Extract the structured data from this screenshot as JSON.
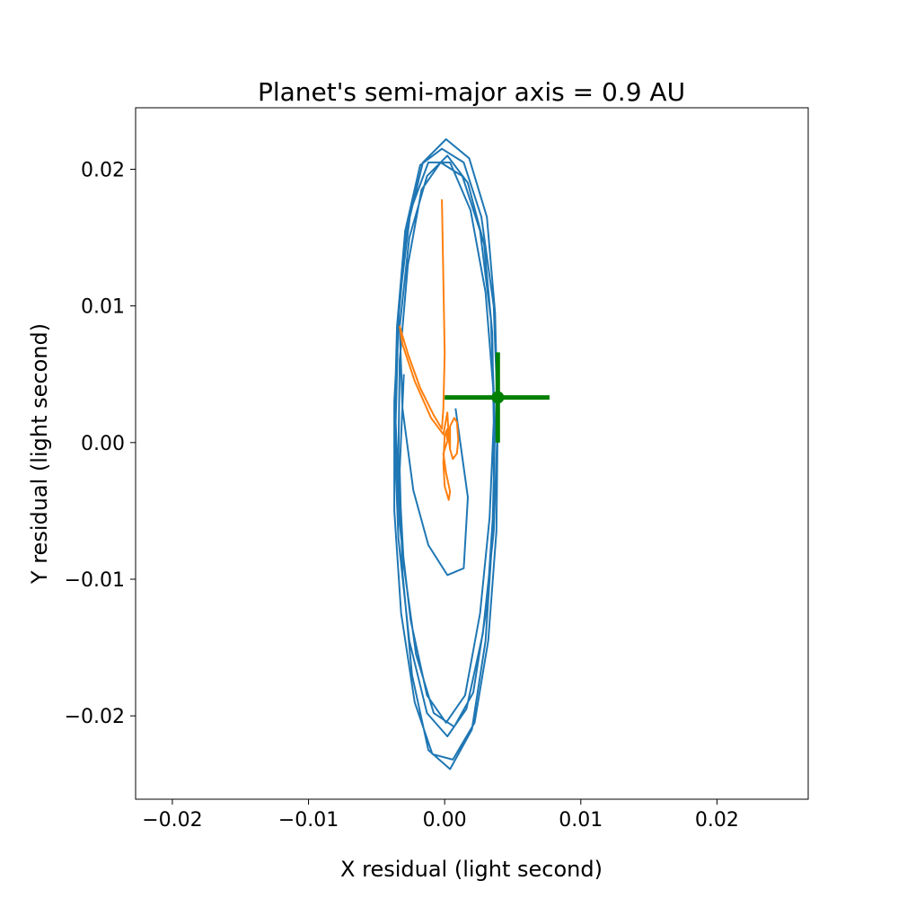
{
  "chart_data": {
    "type": "line",
    "title": "Planet's semi-major axis = 0.9 AU",
    "xlabel": "X residual (light second)",
    "ylabel": "Y residual (light second)",
    "xlim": [
      -0.0227,
      0.0267
    ],
    "ylim": [
      -0.0261,
      0.0245
    ],
    "xticks": [
      -0.02,
      -0.01,
      0.0,
      0.01,
      0.02
    ],
    "xtick_labels": [
      "−0.02",
      "−0.01",
      "0.00",
      "0.01",
      "0.02"
    ],
    "yticks": [
      -0.02,
      -0.01,
      0.0,
      0.01,
      0.02
    ],
    "ytick_labels": [
      "−0.02",
      "−0.01",
      "0.00",
      "0.01",
      "0.02"
    ],
    "grid": false,
    "legend": "none",
    "series": [
      {
        "color": "#1f77b4",
        "points": [
          [
            0.0008,
            0.0025
          ],
          [
            0.0017,
            -0.004
          ],
          [
            0.0014,
            -0.0092
          ],
          [
            0.0002,
            -0.0097
          ],
          [
            -0.0012,
            -0.0075
          ],
          [
            -0.0023,
            -0.0035
          ],
          [
            -0.0031,
            0.0025
          ],
          [
            -0.0033,
            0.0085
          ],
          [
            -0.0026,
            0.015
          ],
          [
            -0.0013,
            0.0195
          ],
          [
            0.0002,
            0.021
          ],
          [
            0.0017,
            0.019
          ],
          [
            0.0029,
            0.0145
          ],
          [
            0.0035,
            0.008
          ],
          [
            0.0036,
            0.0015
          ],
          [
            0.0033,
            -0.0055
          ],
          [
            0.0026,
            -0.0125
          ],
          [
            0.0015,
            -0.0185
          ],
          [
            0.0001,
            -0.0205
          ],
          [
            -0.0013,
            -0.0185
          ],
          [
            -0.0025,
            -0.013
          ],
          [
            -0.0033,
            -0.006
          ],
          [
            -0.0036,
            0.0015
          ],
          [
            -0.0034,
            0.009
          ],
          [
            -0.0028,
            0.0155
          ],
          [
            -0.0016,
            0.0205
          ],
          [
            0.0001,
            0.0222
          ],
          [
            0.0018,
            0.0208
          ],
          [
            0.0031,
            0.0165
          ],
          [
            0.0037,
            0.0095
          ],
          [
            0.0039,
            0.0015
          ],
          [
            0.0036,
            -0.0065
          ],
          [
            0.0028,
            -0.014
          ],
          [
            0.0016,
            -0.0195
          ],
          [
            0.0002,
            -0.0215
          ],
          [
            -0.0013,
            -0.0198
          ],
          [
            -0.0026,
            -0.0145
          ],
          [
            -0.0034,
            -0.007
          ],
          [
            -0.0037,
            0.001
          ],
          [
            -0.0035,
            0.0085
          ],
          [
            -0.0029,
            0.0155
          ],
          [
            -0.0018,
            0.0203
          ],
          [
            -0.0002,
            0.0215
          ],
          [
            0.0014,
            0.0205
          ],
          [
            0.0027,
            0.0165
          ],
          [
            0.0036,
            0.01
          ],
          [
            0.0039,
            0.002
          ],
          [
            0.0038,
            -0.0065
          ],
          [
            0.0032,
            -0.0145
          ],
          [
            0.0022,
            -0.0205
          ],
          [
            0.0006,
            -0.0232
          ],
          [
            -0.0009,
            -0.0228
          ],
          [
            -0.0022,
            -0.019
          ],
          [
            -0.0032,
            -0.0125
          ],
          [
            -0.0037,
            -0.005
          ],
          [
            -0.0037,
            0.003
          ],
          [
            -0.0033,
            0.0105
          ],
          [
            -0.0025,
            0.017
          ],
          [
            -0.0012,
            0.0205
          ],
          [
            0.0004,
            0.0205
          ],
          [
            0.0019,
            0.017
          ],
          [
            0.003,
            0.011
          ],
          [
            0.0036,
            0.0035
          ],
          [
            0.0036,
            -0.0045
          ],
          [
            0.0031,
            -0.012
          ],
          [
            0.0021,
            -0.0183
          ],
          [
            0.0007,
            -0.0208
          ],
          [
            -0.0008,
            -0.0198
          ],
          [
            -0.0021,
            -0.0155
          ],
          [
            -0.003,
            -0.009
          ],
          [
            -0.0034,
            -0.0015
          ],
          [
            -0.0033,
            0.006
          ],
          [
            -0.0027,
            0.013
          ],
          [
            -0.0017,
            0.0185
          ],
          [
            -0.0003,
            0.0205
          ],
          [
            0.0013,
            0.0195
          ],
          [
            0.0026,
            0.0155
          ],
          [
            0.0034,
            0.009
          ],
          [
            0.0037,
            0.0012
          ],
          [
            0.0035,
            -0.007
          ],
          [
            0.003,
            -0.0145
          ],
          [
            0.002,
            -0.021
          ],
          [
            0.0004,
            -0.0239
          ],
          [
            -0.0012,
            -0.0225
          ],
          [
            -0.0024,
            -0.017
          ],
          [
            -0.0031,
            -0.0095
          ],
          [
            -0.0033,
            -0.002
          ],
          [
            -0.003,
            0.005
          ]
        ]
      },
      {
        "color": "#ff7f0e",
        "points": [
          [
            -0.0002,
            0.0178
          ],
          [
            -0.0001,
            0.012
          ],
          [
            0.0,
            0.0065
          ],
          [
            -0.0001,
            0.0025
          ],
          [
            -0.0002,
            0.001
          ],
          [
            -0.0008,
            0.002
          ],
          [
            -0.0018,
            0.004
          ],
          [
            -0.0027,
            0.0065
          ],
          [
            -0.0033,
            0.0085
          ],
          [
            -0.0031,
            0.0072
          ],
          [
            -0.0022,
            0.0045
          ],
          [
            -0.001,
            0.0018
          ],
          [
            -0.0001,
            0.0006
          ],
          [
            0.0002,
            0.0022
          ],
          [
            0.0003,
            0.0004
          ],
          [
            -0.0001,
            -0.0008
          ],
          [
            0.0001,
            -0.0022
          ],
          [
            0.0004,
            -0.0036
          ],
          [
            0.0003,
            -0.0042
          ],
          [
            0.0,
            -0.0032
          ],
          [
            -0.0001,
            -0.0015
          ],
          [
            0.0,
            0.0005
          ],
          [
            0.0002,
            0.001
          ],
          [
            0.0004,
            -0.0005
          ],
          [
            0.0004,
            0.0012
          ],
          [
            0.0007,
            0.0018
          ],
          [
            0.0009,
            0.0015
          ],
          [
            0.001,
            0.0002
          ],
          [
            0.0009,
            -0.0008
          ],
          [
            0.0006,
            -0.0012
          ],
          [
            0.0004,
            -0.0005
          ],
          [
            0.0003,
            0.0005
          ],
          [
            0.0001,
            0.0008
          ],
          [
            0.0002,
            0.0002
          ]
        ]
      }
    ],
    "marker": {
      "color": "#008000",
      "x": 0.0039,
      "y": 0.0033,
      "xerr": [
        0.0039,
        0.0038
      ],
      "yerr": [
        0.0033,
        0.0033
      ]
    }
  }
}
